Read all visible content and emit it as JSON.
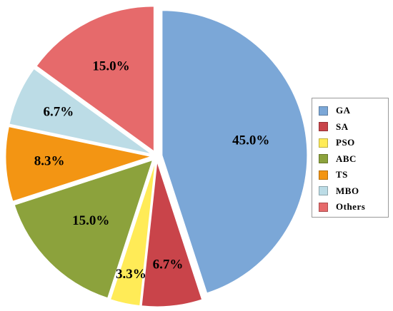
{
  "chart_data": {
    "type": "pie",
    "categories": [
      "GA",
      "SA",
      "PSO",
      "ABC",
      "TS",
      "MBO",
      "Others"
    ],
    "values": [
      45.0,
      6.7,
      3.3,
      15.0,
      8.3,
      6.7,
      15.0
    ],
    "labels": [
      "45.0%",
      "6.7%",
      "3.3%",
      "15.0%",
      "8.3%",
      "6.7%",
      "15.0%"
    ],
    "colors": [
      "#7BA7D7",
      "#C9444A",
      "#FFEB57",
      "#8CA23C",
      "#F39513",
      "#BCDCE6",
      "#E66A6B"
    ],
    "exploded": true,
    "legend": "right",
    "title": "",
    "xlabel": "",
    "ylabel": ""
  }
}
